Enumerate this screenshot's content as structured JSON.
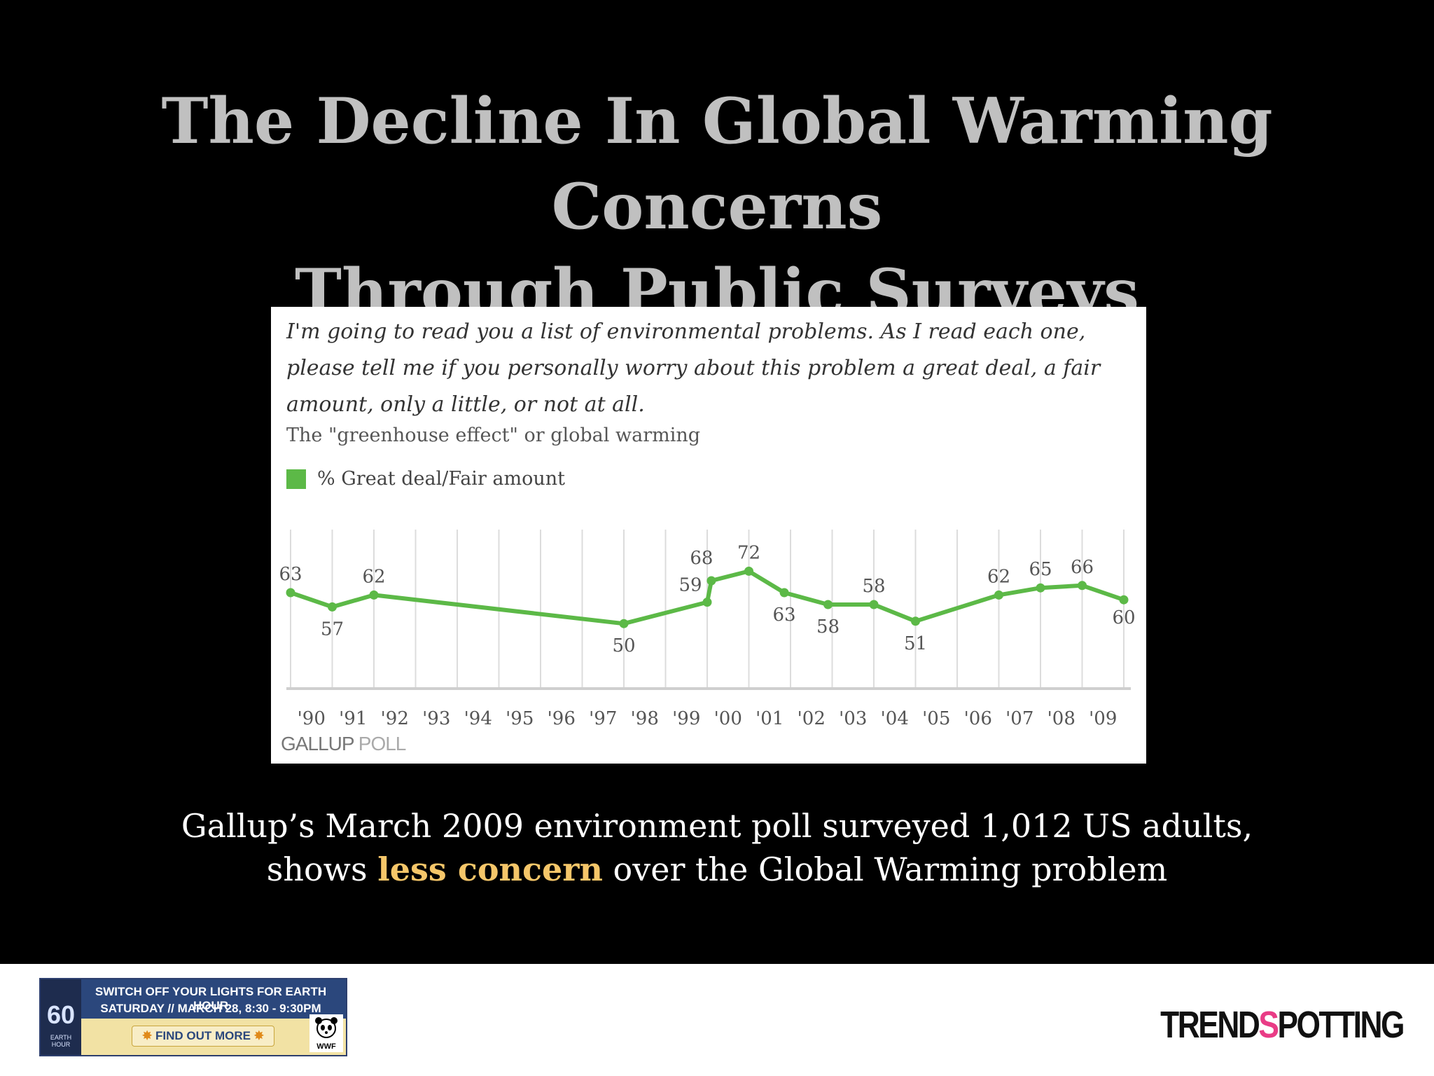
{
  "slide": {
    "title_line1": "The Decline In Global Warming Concerns",
    "title_line2": "Through Public Surveys",
    "caption_line1": "Gallup’s March 2009 environment poll surveyed 1,012 US adults,",
    "caption_pre": "shows ",
    "caption_highlight": "less concern",
    "caption_post": " over the Global Warming problem",
    "highlight_color": "#f5c669"
  },
  "chart": {
    "question": "I'm going to read you a list of environmental problems. As I read each one, please tell me if you personally worry about this problem a great deal, a fair amount, only a little, or not at all.",
    "subtitle": "The \"greenhouse effect\" or global warming",
    "legend_label": "% Great deal/Fair amount",
    "source_a": "GALLUP",
    "source_b": " POLL"
  },
  "chart_data": {
    "type": "line",
    "ylabel": "% Great deal/Fair amount",
    "series_color": "#5cb947",
    "categories": [
      "'90",
      "'91",
      "'92",
      "'93",
      "'94",
      "'95",
      "'96",
      "'97",
      "'98",
      "'99",
      "'00",
      "'01",
      "'02",
      "'03",
      "'04",
      "'05",
      "'06",
      "'07",
      "'08",
      "'09"
    ],
    "x": [
      1989.0,
      1990.0,
      1991.0,
      1997.0,
      1999.0,
      1999.1,
      2000.0,
      2000.85,
      2001.9,
      2003.0,
      2004.0,
      2006.0,
      2007.0,
      2008.0,
      2009.0
    ],
    "y": [
      63,
      57,
      62,
      50,
      59,
      68,
      72,
      63,
      58,
      58,
      51,
      62,
      65,
      66,
      60
    ],
    "labels": [
      "63",
      "57",
      "62",
      "50",
      "59",
      "68",
      "72",
      "63",
      "58",
      "58",
      "51",
      "62",
      "65",
      "66",
      "60"
    ],
    "label_pos": [
      "above",
      "below",
      "above",
      "below",
      "above",
      "above",
      "above",
      "below",
      "below",
      "above",
      "below",
      "above",
      "above",
      "above",
      "below"
    ],
    "ylim": [
      40,
      80
    ],
    "grid": "vertical"
  },
  "footer": {
    "banner_line1": "SWITCH OFF YOUR LIGHTS FOR EARTH HOUR",
    "banner_line2": "SATURDAY // MARCH 28, 8:30 - 9:30PM",
    "banner_cta": "FIND OUT MORE",
    "banner_logo": "60",
    "banner_logo_sub": "EARTH HOUR",
    "wwf_label": "WWF",
    "brand_a": "TREND",
    "brand_b": "S",
    "brand_c": "POTTING"
  }
}
